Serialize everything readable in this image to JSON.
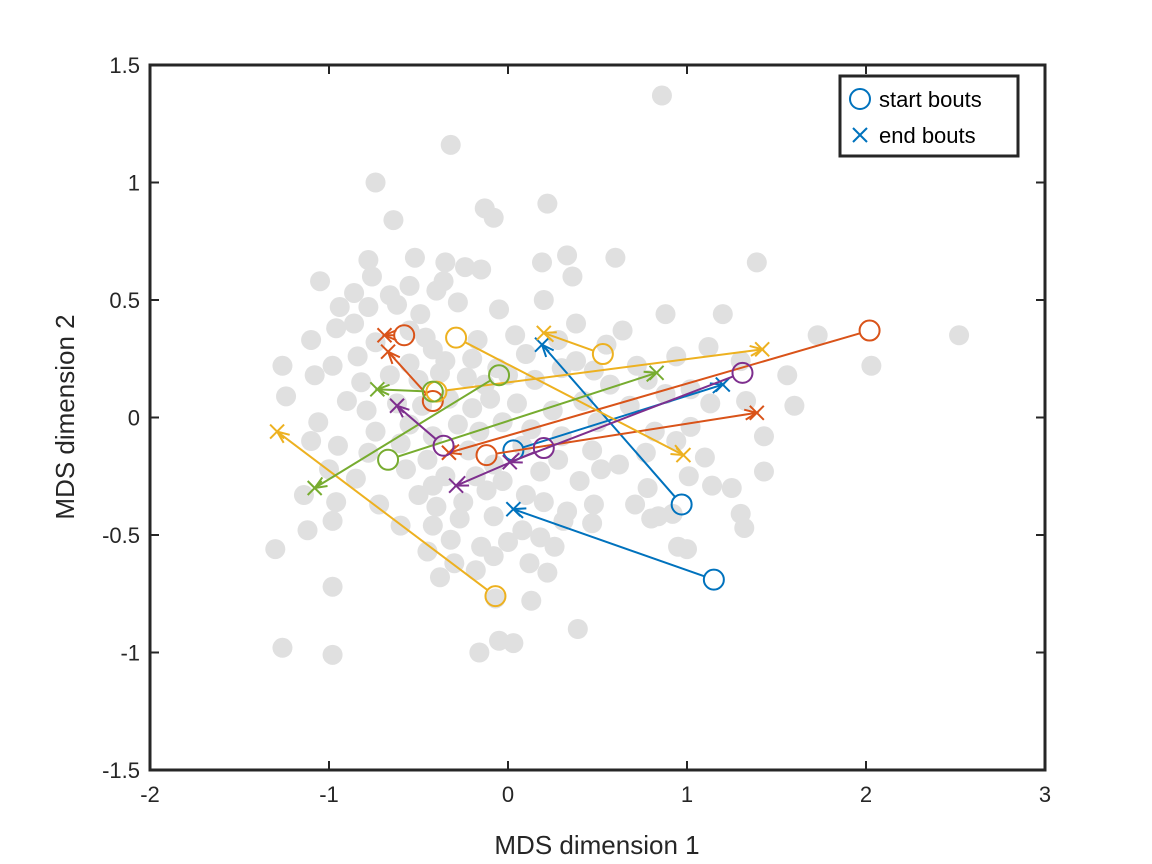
{
  "chart_data": {
    "type": "scatter",
    "title": "",
    "xlabel": "MDS dimension 1",
    "ylabel": "MDS dimension 2",
    "xlim": [
      -2,
      3
    ],
    "ylim": [
      -1.5,
      1.5
    ],
    "xticks": [
      -2,
      -1,
      0,
      1,
      2,
      3
    ],
    "yticks": [
      -1.5,
      -1,
      -0.5,
      0,
      0.5,
      1,
      1.5
    ],
    "xtick_labels": [
      "-2",
      "-1",
      "0",
      "1",
      "2",
      "3"
    ],
    "ytick_labels": [
      "-1.5",
      "-1",
      "-0.5",
      "0",
      "0.5",
      "1",
      "1.5"
    ],
    "grid": false,
    "legend_position": "top-right",
    "legend": [
      {
        "label": "start bouts",
        "marker": "circle",
        "color": "#0072BD"
      },
      {
        "label": "end bouts",
        "marker": "x",
        "color": "#0072BD"
      }
    ],
    "background_points": {
      "color": "#E0E0E0",
      "points": [
        [
          0.86,
          1.37
        ],
        [
          -0.32,
          1.16
        ],
        [
          -0.74,
          1.0
        ],
        [
          -0.64,
          0.84
        ],
        [
          -0.13,
          0.89
        ],
        [
          -0.08,
          0.85
        ],
        [
          0.22,
          0.91
        ],
        [
          -0.78,
          0.67
        ],
        [
          -0.52,
          0.68
        ],
        [
          -0.35,
          0.66
        ],
        [
          -0.24,
          0.64
        ],
        [
          -0.15,
          0.63
        ],
        [
          0.19,
          0.66
        ],
        [
          0.33,
          0.69
        ],
        [
          0.6,
          0.68
        ],
        [
          1.39,
          0.66
        ],
        [
          -1.05,
          0.58
        ],
        [
          -0.76,
          0.6
        ],
        [
          -0.55,
          0.56
        ],
        [
          -0.36,
          0.58
        ],
        [
          0.36,
          0.6
        ],
        [
          -0.86,
          0.53
        ],
        [
          -0.66,
          0.52
        ],
        [
          -0.4,
          0.54
        ],
        [
          -0.28,
          0.49
        ],
        [
          -0.05,
          0.46
        ],
        [
          -0.94,
          0.47
        ],
        [
          -0.78,
          0.47
        ],
        [
          -0.62,
          0.48
        ],
        [
          -0.49,
          0.44
        ],
        [
          0.2,
          0.5
        ],
        [
          0.38,
          0.4
        ],
        [
          0.88,
          0.44
        ],
        [
          1.2,
          0.44
        ],
        [
          -1.1,
          0.33
        ],
        [
          -0.96,
          0.38
        ],
        [
          -0.86,
          0.4
        ],
        [
          -0.55,
          0.37
        ],
        [
          -0.46,
          0.34
        ],
        [
          -0.17,
          0.33
        ],
        [
          0.04,
          0.35
        ],
        [
          0.28,
          0.33
        ],
        [
          0.55,
          0.31
        ],
        [
          0.64,
          0.37
        ],
        [
          1.12,
          0.3
        ],
        [
          -1.26,
          0.22
        ],
        [
          -0.84,
          0.26
        ],
        [
          -0.74,
          0.32
        ],
        [
          -0.55,
          0.23
        ],
        [
          -0.42,
          0.29
        ],
        [
          -0.35,
          0.24
        ],
        [
          -0.2,
          0.25
        ],
        [
          -0.06,
          0.21
        ],
        [
          0.1,
          0.27
        ],
        [
          0.38,
          0.24
        ],
        [
          0.48,
          0.2
        ],
        [
          0.72,
          0.22
        ],
        [
          0.94,
          0.26
        ],
        [
          1.3,
          0.24
        ],
        [
          1.73,
          0.35
        ],
        [
          2.52,
          0.35
        ],
        [
          -1.08,
          0.18
        ],
        [
          -0.98,
          0.22
        ],
        [
          -0.82,
          0.15
        ],
        [
          -0.66,
          0.18
        ],
        [
          -0.5,
          0.16
        ],
        [
          -0.38,
          0.19
        ],
        [
          -0.23,
          0.17
        ],
        [
          -0.13,
          0.14
        ],
        [
          0.0,
          0.18
        ],
        [
          0.15,
          0.16
        ],
        [
          0.3,
          0.21
        ],
        [
          0.57,
          0.14
        ],
        [
          0.78,
          0.16
        ],
        [
          1.02,
          0.12
        ],
        [
          1.56,
          0.18
        ],
        [
          2.03,
          0.22
        ],
        [
          -1.24,
          0.09
        ],
        [
          -0.9,
          0.07
        ],
        [
          -0.79,
          0.03
        ],
        [
          -0.62,
          0.06
        ],
        [
          -0.48,
          0.05
        ],
        [
          -0.33,
          0.08
        ],
        [
          -0.2,
          0.04
        ],
        [
          -0.1,
          0.08
        ],
        [
          0.05,
          0.06
        ],
        [
          0.25,
          0.03
        ],
        [
          0.42,
          0.07
        ],
        [
          0.68,
          0.05
        ],
        [
          0.88,
          0.1
        ],
        [
          1.13,
          0.06
        ],
        [
          1.33,
          0.07
        ],
        [
          1.6,
          0.05
        ],
        [
          -1.06,
          -0.02
        ],
        [
          -0.74,
          -0.06
        ],
        [
          -0.55,
          -0.03
        ],
        [
          -0.42,
          -0.08
        ],
        [
          -0.28,
          -0.03
        ],
        [
          -0.16,
          -0.06
        ],
        [
          -0.03,
          -0.02
        ],
        [
          0.13,
          -0.05
        ],
        [
          0.3,
          -0.08
        ],
        [
          0.5,
          -0.02
        ],
        [
          0.82,
          -0.06
        ],
        [
          1.02,
          -0.04
        ],
        [
          1.43,
          -0.08
        ],
        [
          -1.1,
          -0.1
        ],
        [
          -0.95,
          -0.12
        ],
        [
          -0.78,
          -0.15
        ],
        [
          -0.6,
          -0.11
        ],
        [
          -0.45,
          -0.18
        ],
        [
          -0.22,
          -0.14
        ],
        [
          -0.08,
          -0.2
        ],
        [
          0.08,
          -0.12
        ],
        [
          0.28,
          -0.18
        ],
        [
          0.47,
          -0.14
        ],
        [
          0.62,
          -0.2
        ],
        [
          0.77,
          -0.15
        ],
        [
          0.94,
          -0.1
        ],
        [
          1.1,
          -0.17
        ],
        [
          -1.0,
          -0.22
        ],
        [
          -0.85,
          -0.26
        ],
        [
          -0.57,
          -0.22
        ],
        [
          -0.42,
          -0.29
        ],
        [
          -0.35,
          -0.25
        ],
        [
          -0.18,
          -0.25
        ],
        [
          -0.03,
          -0.27
        ],
        [
          0.18,
          -0.23
        ],
        [
          0.4,
          -0.27
        ],
        [
          0.52,
          -0.22
        ],
        [
          0.78,
          -0.3
        ],
        [
          1.01,
          -0.25
        ],
        [
          1.14,
          -0.29
        ],
        [
          1.25,
          -0.3
        ],
        [
          1.43,
          -0.23
        ],
        [
          -1.14,
          -0.33
        ],
        [
          -0.96,
          -0.36
        ],
        [
          -0.72,
          -0.37
        ],
        [
          -0.5,
          -0.33
        ],
        [
          -0.4,
          -0.38
        ],
        [
          -0.25,
          -0.36
        ],
        [
          -0.12,
          -0.31
        ],
        [
          0.1,
          -0.33
        ],
        [
          0.2,
          -0.36
        ],
        [
          0.33,
          -0.4
        ],
        [
          0.48,
          -0.37
        ],
        [
          0.71,
          -0.37
        ],
        [
          0.84,
          -0.42
        ],
        [
          0.92,
          -0.41
        ],
        [
          1.3,
          -0.41
        ],
        [
          1.32,
          -0.47
        ],
        [
          -1.12,
          -0.48
        ],
        [
          -0.98,
          -0.44
        ],
        [
          -0.6,
          -0.46
        ],
        [
          -0.42,
          -0.46
        ],
        [
          -0.27,
          -0.43
        ],
        [
          -0.08,
          -0.42
        ],
        [
          0.08,
          -0.48
        ],
        [
          0.31,
          -0.44
        ],
        [
          0.47,
          -0.45
        ],
        [
          0.8,
          -0.43
        ],
        [
          -0.45,
          -0.57
        ],
        [
          -0.32,
          -0.52
        ],
        [
          -0.15,
          -0.55
        ],
        [
          0.0,
          -0.53
        ],
        [
          0.18,
          -0.51
        ],
        [
          0.26,
          -0.55
        ],
        [
          0.95,
          -0.55
        ],
        [
          1.0,
          -0.56
        ],
        [
          -1.3,
          -0.56
        ],
        [
          -0.38,
          -0.68
        ],
        [
          -0.3,
          -0.62
        ],
        [
          -0.18,
          -0.65
        ],
        [
          -0.08,
          -0.59
        ],
        [
          0.12,
          -0.62
        ],
        [
          0.22,
          -0.66
        ],
        [
          -0.07,
          -0.77
        ],
        [
          0.13,
          -0.78
        ],
        [
          -0.98,
          -0.72
        ],
        [
          0.39,
          -0.9
        ],
        [
          -0.05,
          -0.95
        ],
        [
          0.03,
          -0.96
        ],
        [
          -0.16,
          -1.0
        ],
        [
          -1.26,
          -0.98
        ],
        [
          -0.98,
          -1.01
        ]
      ]
    },
    "series": [
      {
        "color": "#0072BD",
        "segments": [
          {
            "start": [
              0.97,
              -0.37
            ],
            "end": [
              0.19,
              0.31
            ]
          },
          {
            "start": [
              1.15,
              -0.69
            ],
            "end": [
              0.03,
              -0.39
            ]
          },
          {
            "start": [
              0.03,
              -0.14
            ],
            "end": [
              1.2,
              0.14
            ]
          }
        ]
      },
      {
        "color": "#D95319",
        "segments": [
          {
            "start": [
              -0.58,
              0.35
            ],
            "end": [
              -0.69,
              0.35
            ]
          },
          {
            "start": [
              -0.42,
              0.07
            ],
            "end": [
              -0.67,
              0.28
            ]
          },
          {
            "start": [
              2.02,
              0.37
            ],
            "end": [
              -0.33,
              -0.15
            ]
          },
          {
            "start": [
              -0.12,
              -0.16
            ],
            "end": [
              1.39,
              0.02
            ]
          }
        ]
      },
      {
        "color": "#EDB120",
        "segments": [
          {
            "start": [
              -0.29,
              0.34
            ],
            "end": [
              0.98,
              -0.16
            ]
          },
          {
            "start": [
              0.53,
              0.27
            ],
            "end": [
              0.2,
              0.36
            ]
          },
          {
            "start": [
              -0.4,
              0.11
            ],
            "end": [
              1.42,
              0.29
            ]
          },
          {
            "start": [
              -0.07,
              -0.76
            ],
            "end": [
              -1.29,
              -0.06
            ]
          }
        ]
      },
      {
        "color": "#77AC30",
        "segments": [
          {
            "start": [
              -0.05,
              0.18
            ],
            "end": [
              -1.08,
              -0.3
            ]
          },
          {
            "start": [
              -0.67,
              -0.18
            ],
            "end": [
              0.83,
              0.19
            ]
          },
          {
            "start": [
              -0.42,
              0.11
            ],
            "end": [
              -0.73,
              0.12
            ]
          }
        ]
      },
      {
        "color": "#7E2F8E",
        "segments": [
          {
            "start": [
              -0.36,
              -0.12
            ],
            "end": [
              -0.62,
              0.05
            ]
          },
          {
            "start": [
              0.2,
              -0.13
            ],
            "end": [
              -0.29,
              -0.29
            ]
          },
          {
            "start": [
              1.31,
              0.19
            ],
            "end": [
              0.01,
              -0.19
            ]
          }
        ]
      }
    ]
  }
}
